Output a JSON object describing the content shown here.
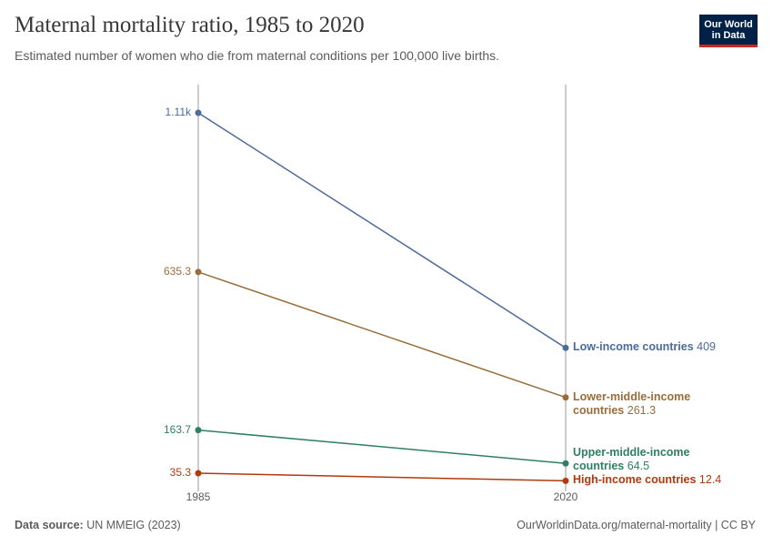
{
  "header": {
    "title": "Maternal mortality ratio, 1985 to 2020",
    "subtitle": "Estimated number of women who die from maternal conditions per 100,000 live births.",
    "logo": [
      "Our World",
      "in Data"
    ]
  },
  "chart_data": {
    "type": "slope",
    "x": [
      "1985",
      "2020"
    ],
    "series": [
      {
        "name": "Low-income countries",
        "color": "#4c6a9c",
        "values": [
          1110,
          409
        ],
        "value_labels": [
          "1.11k",
          "409"
        ]
      },
      {
        "name": "Lower-middle-income countries",
        "color": "#996d3a",
        "values": [
          635.3,
          261.3
        ]
      },
      {
        "name": "Upper-middle-income countries",
        "color": "#2e7f63",
        "values": [
          163.7,
          64.5
        ]
      },
      {
        "name": "High-income countries",
        "color": "#b13a0c",
        "values": [
          35.3,
          12.4
        ]
      }
    ]
  },
  "footer": {
    "source_label": "Data source:",
    "source": "UN MMEIG (2023)",
    "url": "OurWorldinData.org/maternal-mortality | CC BY"
  }
}
